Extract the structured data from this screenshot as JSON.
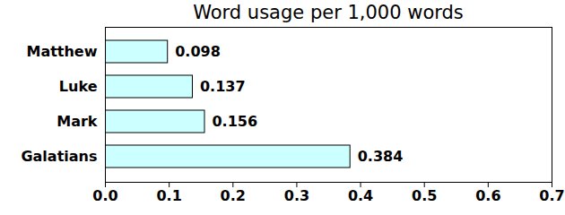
{
  "chart_data": {
    "type": "bar",
    "title": "Word usage per 1,000 words",
    "orientation": "horizontal",
    "categories": [
      "Matthew",
      "Luke",
      "Mark",
      "Galatians"
    ],
    "values": [
      0.098,
      0.137,
      0.156,
      0.384
    ],
    "color": "#ccffff",
    "xlim": [
      0,
      0.7
    ],
    "xticks": [
      {
        "value": 0,
        "label": "0.0"
      },
      0.1,
      0.2,
      0.3,
      0.4,
      0.5,
      0.6,
      0.7
    ],
    "grid": false,
    "data_labels": true
  }
}
